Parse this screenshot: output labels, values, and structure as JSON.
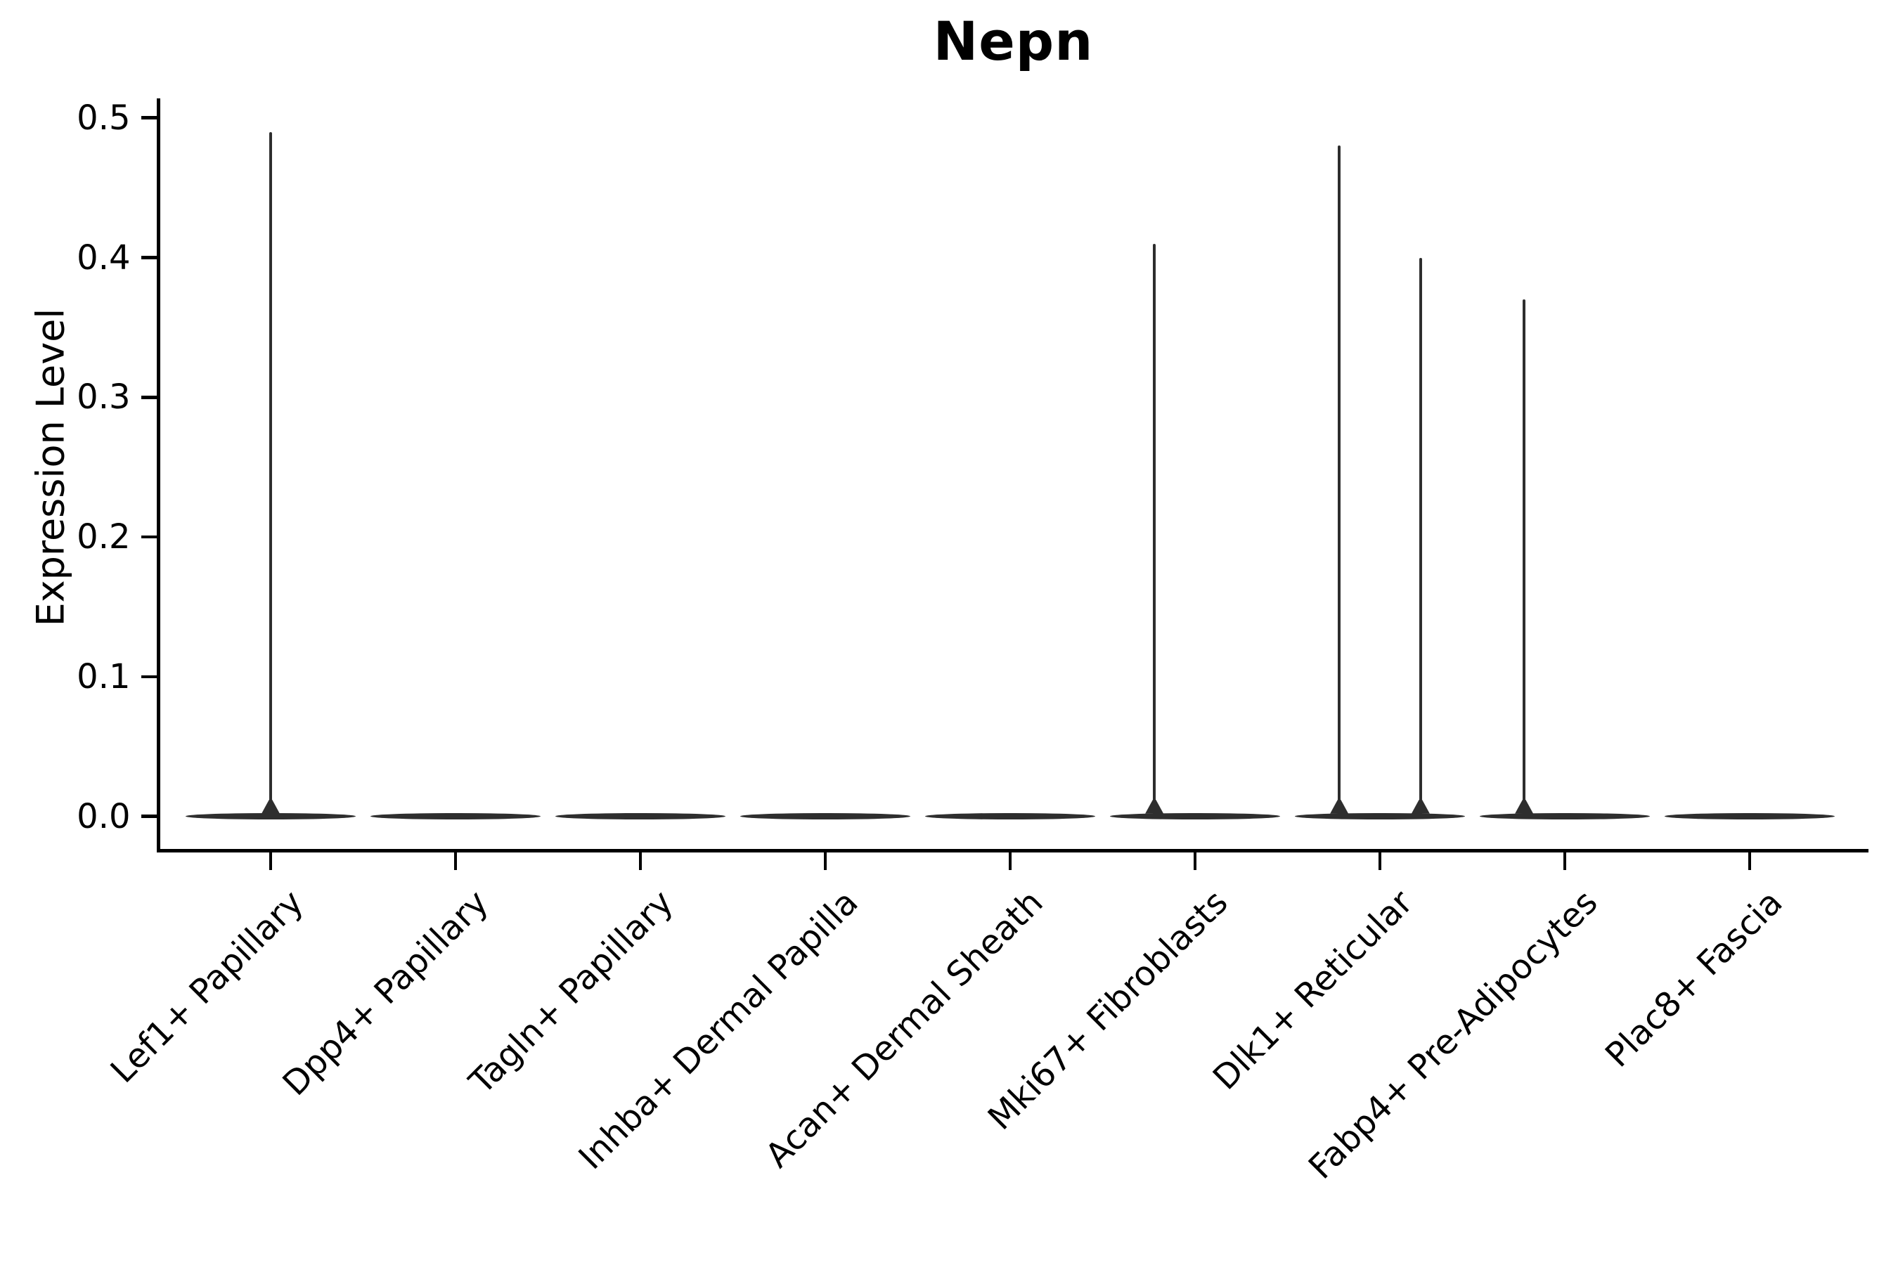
{
  "chart_data": {
    "type": "violin",
    "title": "Nepn",
    "xlabel": "",
    "ylabel": "Expression Level",
    "ylim": [
      0,
      0.5
    ],
    "yticks": [
      "0.0",
      "0.1",
      "0.2",
      "0.3",
      "0.4",
      "0.5"
    ],
    "grid": false,
    "legend": "none",
    "categories": [
      "Lef1+ Papillary",
      "Dpp4+ Papillary",
      "Tagln+ Papillary",
      "Inhba+ Dermal Papilla",
      "Acan+ Dermal Sheath",
      "Mki67+ Fibroblasts",
      "Dlk1+ Reticular",
      "Fabp4+ Pre-Adipocytes",
      "Plac8+ Fascia"
    ],
    "violins": [
      {
        "category": "Lef1+ Papillary",
        "baseline_value": 0.0,
        "spikes": [
          {
            "offset_frac": 0.0,
            "max_value": 0.49
          }
        ]
      },
      {
        "category": "Dpp4+ Papillary",
        "baseline_value": 0.0,
        "spikes": []
      },
      {
        "category": "Tagln+ Papillary",
        "baseline_value": 0.0,
        "spikes": []
      },
      {
        "category": "Inhba+ Dermal Papilla",
        "baseline_value": 0.0,
        "spikes": []
      },
      {
        "category": "Acan+ Dermal Sheath",
        "baseline_value": 0.0,
        "spikes": []
      },
      {
        "category": "Mki67+ Fibroblasts",
        "baseline_value": 0.0,
        "spikes": [
          {
            "offset_frac": -0.22,
            "max_value": 0.41
          }
        ]
      },
      {
        "category": "Dlk1+ Reticular",
        "baseline_value": 0.0,
        "spikes": [
          {
            "offset_frac": -0.22,
            "max_value": 0.48
          },
          {
            "offset_frac": 0.22,
            "max_value": 0.4
          }
        ]
      },
      {
        "category": "Fabp4+ Pre-Adipocytes",
        "baseline_value": 0.0,
        "spikes": [
          {
            "offset_frac": -0.22,
            "max_value": 0.37
          }
        ]
      },
      {
        "category": "Plac8+ Fascia",
        "baseline_value": 0.0,
        "spikes": []
      }
    ],
    "colors": {
      "violin": "#2e2e2e",
      "axis": "#000000",
      "text": "#000000",
      "background": "#ffffff"
    }
  }
}
